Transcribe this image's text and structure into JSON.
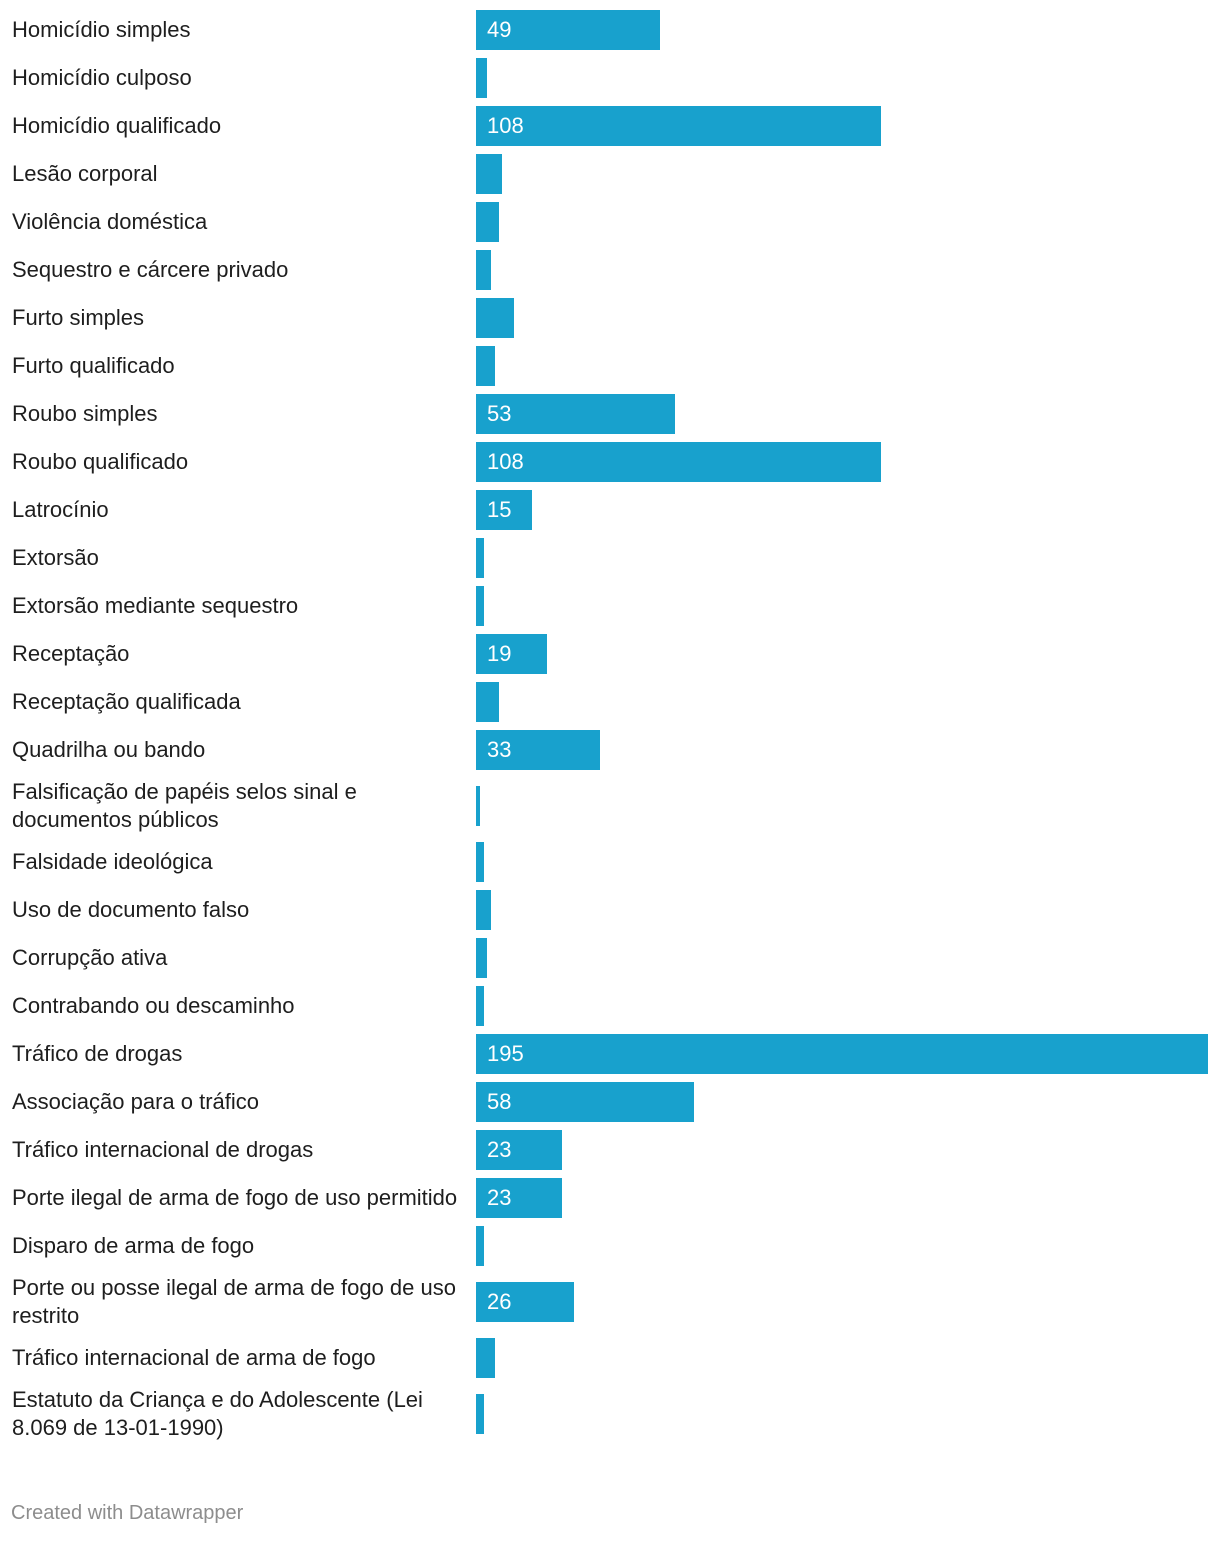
{
  "chart_data": {
    "type": "bar",
    "orientation": "horizontal",
    "color": "#18a1cd",
    "xlim": [
      0,
      195
    ],
    "categories": [
      "Homicídio simples",
      "Homicídio culposo",
      "Homicídio qualificado",
      "Lesão corporal",
      "Violência doméstica",
      "Sequestro e cárcere privado",
      "Furto simples",
      "Furto qualificado",
      "Roubo simples",
      "Roubo qualificado",
      "Latrocínio",
      "Extorsão",
      "Extorsão mediante sequestro",
      "Receptação",
      "Receptação qualificada",
      "Quadrilha ou bando",
      "Falsificação de papéis selos sinal e documentos públicos",
      "Falsidade ideológica",
      "Uso de documento falso",
      "Corrupção ativa",
      "Contrabando ou descaminho",
      "Tráfico de drogas",
      "Associação para o tráfico",
      "Tráfico internacional de drogas",
      "Porte ilegal de arma de fogo de uso permitido",
      "Disparo de arma de fogo",
      "Porte ou posse ilegal de arma de fogo de uso restrito",
      "Tráfico internacional de arma de fogo",
      "Estatuto da Criança e do Adolescente (Lei 8.069 de 13-01-1990)"
    ],
    "values": [
      49,
      3,
      108,
      7,
      6,
      4,
      10,
      5,
      53,
      108,
      15,
      2,
      2,
      19,
      6,
      33,
      1,
      2,
      4,
      3,
      2,
      195,
      58,
      23,
      23,
      2,
      26,
      5,
      2
    ],
    "data_labels": [
      "49",
      "",
      "108",
      "",
      "",
      "",
      "",
      "",
      "53",
      "108",
      "15",
      "",
      "",
      "19",
      "",
      "33",
      "",
      "",
      "",
      "",
      "",
      "195",
      "58",
      "23",
      "23",
      "",
      "26",
      "",
      ""
    ]
  },
  "footer": {
    "credit": "Created with Datawrapper"
  }
}
